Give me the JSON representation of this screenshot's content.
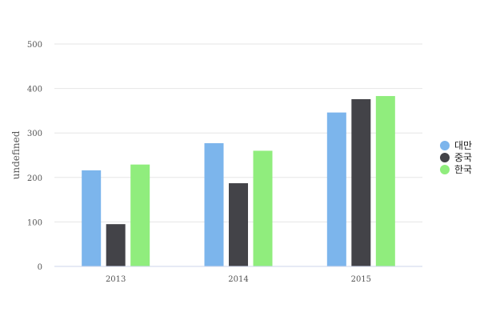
{
  "chart_data": {
    "type": "bar",
    "ylabel": "undefined",
    "categories": [
      "2013",
      "2014",
      "2015"
    ],
    "series": [
      {
        "name": "대만",
        "color": "#7cb5ec",
        "values": [
          216,
          277,
          346
        ]
      },
      {
        "name": "중국",
        "color": "#434348",
        "values": [
          95,
          187,
          376
        ]
      },
      {
        "name": "한국",
        "color": "#90ed7d",
        "values": [
          229,
          260,
          383
        ]
      }
    ],
    "ylim": [
      0,
      500
    ],
    "yticks": [
      0,
      100,
      200,
      300,
      400,
      500
    ],
    "grid": true,
    "legend": "right"
  }
}
